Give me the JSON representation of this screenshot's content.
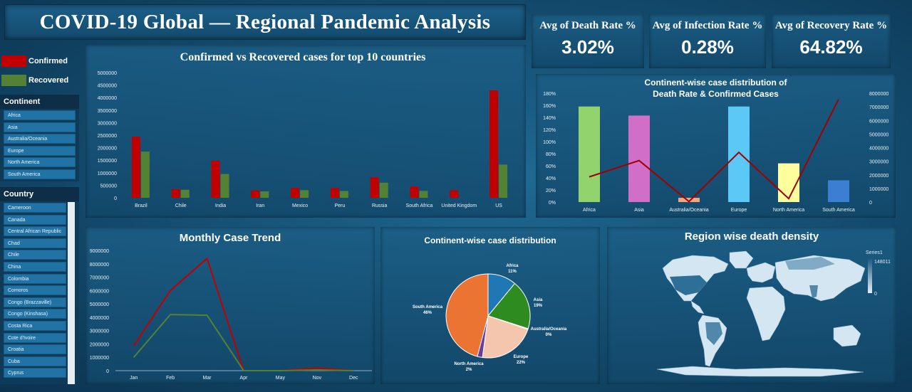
{
  "header": {
    "title": "COVID-19 Global — Regional Pandemic Analysis"
  },
  "kpis": [
    {
      "label": "Avg of Death Rate %",
      "value": "3.02%"
    },
    {
      "label": "Avg of Infection Rate %",
      "value": "0.28%"
    },
    {
      "label": "Avg of Recovery Rate %",
      "value": "64.82%"
    }
  ],
  "legend": [
    {
      "label": "Confirmed",
      "color": "#c00000"
    },
    {
      "label": "Recovered",
      "color": "#548235"
    }
  ],
  "continent_slicer": {
    "title": "Continent",
    "items": [
      "Africa",
      "Asia",
      "Australia/Oceania",
      "Europe",
      "North America",
      "South America"
    ]
  },
  "country_slicer": {
    "title": "Country",
    "items": [
      "Cameroon",
      "Canada",
      "Central African Republic",
      "Chad",
      "Chile",
      "China",
      "Colombia",
      "Comoros",
      "Congo (Brazzaville)",
      "Congo (Kinshasa)",
      "Costa Rica",
      "Cote d'Ivoire",
      "Croatia",
      "Cuba",
      "Cyprus"
    ]
  },
  "map": {
    "title": "Region wise death density",
    "legend_series": "Series1",
    "legend_max": "148011",
    "legend_min": "0"
  },
  "chart_data": [
    {
      "id": "top10",
      "type": "bar",
      "title": "Confirmed vs Recovered cases for top 10 countries",
      "categories": [
        "Brazil",
        "Chile",
        "India",
        "Iran",
        "Mexico",
        "Peru",
        "Russia",
        "South Africa",
        "United Kingdom",
        "US"
      ],
      "series": [
        {
          "name": "Confirmed",
          "color": "#c00000",
          "values": [
            2442375,
            347923,
            1480073,
            293606,
            395489,
            389717,
            816680,
            452529,
            301708,
            4290259
          ]
        },
        {
          "name": "Recovered",
          "color": "#548235",
          "values": [
            1846641,
            319954,
            951166,
            255144,
            303810,
            272547,
            602249,
            274925,
            1437,
            1325804
          ]
        }
      ],
      "ylim": [
        0,
        5000000
      ],
      "yticks": [
        0,
        500000,
        1000000,
        1500000,
        2000000,
        2500000,
        3000000,
        3500000,
        4000000,
        4500000,
        5000000
      ],
      "ytick_labels": [
        "0",
        "500000",
        "1000000",
        "1500000",
        "2000000",
        "2500000",
        "3000000",
        "3500000",
        "4000000",
        "4500000",
        "5000000"
      ]
    },
    {
      "id": "combo",
      "type": "bar",
      "title": "Continent-wise case distribution of",
      "subtitle": "Death Rate & Confirmed Cases",
      "categories": [
        "Africa",
        "Asia",
        "Australia/Oceania",
        "Europe",
        "North America",
        "South America"
      ],
      "bar_colors": [
        "#92d36e",
        "#d16fc8",
        "#f4a582",
        "#5bc8f5",
        "#ffff9e",
        "#3a7fd1"
      ],
      "bars": {
        "values": [
          158,
          143,
          7,
          158,
          64,
          36
        ],
        "ylim": [
          0,
          180
        ]
      },
      "line": {
        "color": "#a00000",
        "values": [
          1850000,
          3050000,
          40000,
          3650000,
          250000,
          7550000
        ],
        "ylim": [
          0,
          8000000
        ]
      },
      "yticks_left": [
        0,
        20,
        40,
        60,
        80,
        100,
        120,
        140,
        160,
        180
      ],
      "ytick_labels_left": [
        "0%",
        "20%",
        "40%",
        "60%",
        "80%",
        "100%",
        "120%",
        "140%",
        "160%",
        "180%"
      ],
      "yticks_right": [
        0,
        1000000,
        2000000,
        3000000,
        4000000,
        5000000,
        6000000,
        7000000,
        8000000
      ],
      "ytick_labels_right": [
        "0",
        "1000000",
        "2000000",
        "3000000",
        "4000000",
        "5000000",
        "6000000",
        "7000000",
        "8000000"
      ]
    },
    {
      "id": "monthly",
      "type": "line",
      "title": "Monthly Case Trend",
      "x": [
        "Jan",
        "Feb",
        "Mar",
        "Apr",
        "May",
        "Nov",
        "Dec"
      ],
      "series": [
        {
          "name": "Confirmed",
          "color": "#c00000",
          "values": [
            1850000,
            6000000,
            8400000,
            0,
            0,
            200000,
            0
          ]
        },
        {
          "name": "Recovered",
          "color": "#548235",
          "values": [
            1000000,
            4200000,
            4150000,
            0,
            0,
            50000,
            0
          ]
        }
      ],
      "ylim": [
        0,
        9000000
      ],
      "yticks": [
        0,
        1000000,
        2000000,
        3000000,
        4000000,
        5000000,
        6000000,
        7000000,
        8000000,
        9000000
      ],
      "ytick_labels": [
        "0",
        "1000000",
        "2000000",
        "3000000",
        "4000000",
        "5000000",
        "6000000",
        "7000000",
        "8000000",
        "9000000"
      ]
    },
    {
      "id": "pie",
      "type": "pie",
      "title": "Continent-wise case distribution",
      "slices": [
        {
          "label": "Africa",
          "pct": "11%",
          "value": 11,
          "color": "#1f77b4"
        },
        {
          "label": "Asia",
          "pct": "19%",
          "value": 19,
          "color": "#2e8b1f"
        },
        {
          "label": "Australia/Oceania",
          "pct": "0%",
          "value": 0.3,
          "color": "#cccccc"
        },
        {
          "label": "Europe",
          "pct": "22%",
          "value": 22,
          "color": "#f4c6ad"
        },
        {
          "label": "North America",
          "pct": "2%",
          "value": 2,
          "color": "#6a3d9a"
        },
        {
          "label": "South America",
          "pct": "46%",
          "value": 46,
          "color": "#ec7433"
        }
      ]
    }
  ]
}
